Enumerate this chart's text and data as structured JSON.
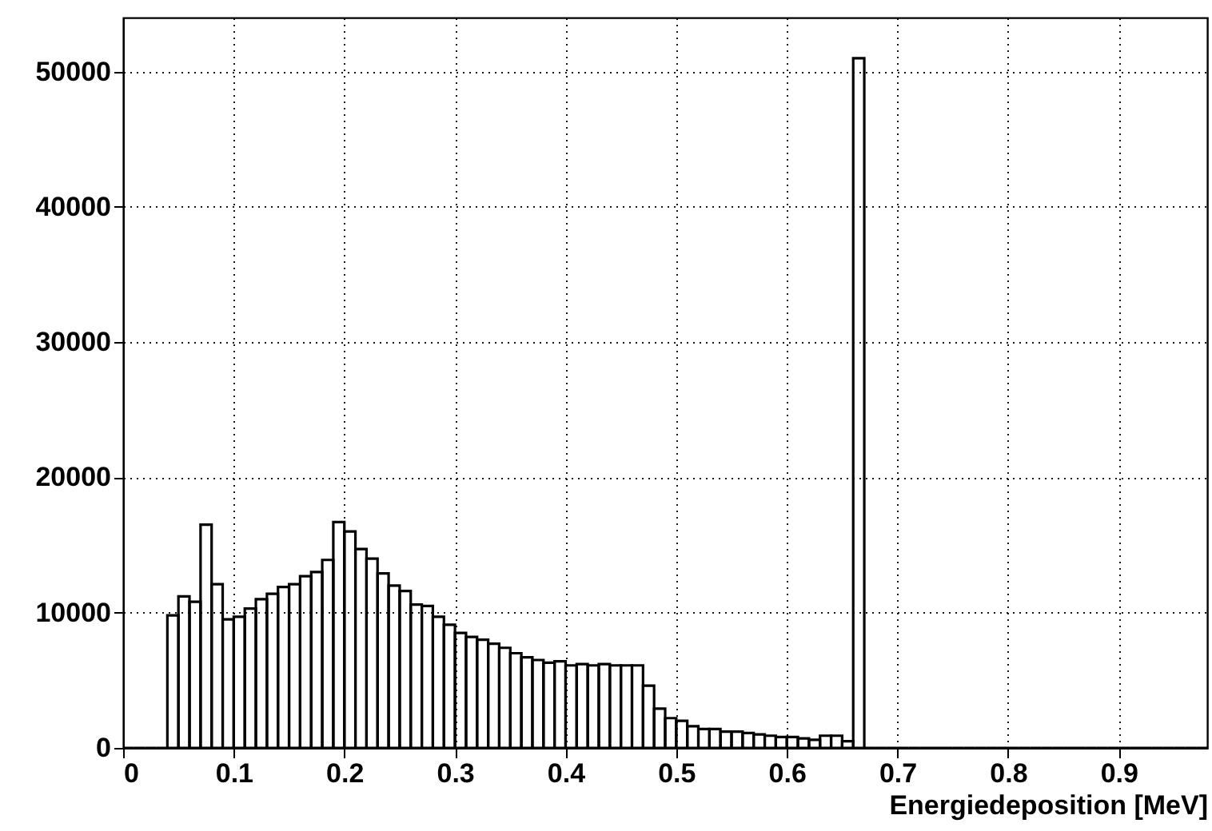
{
  "chart_data": {
    "type": "histogram",
    "xlabel": "Energiedeposition [MeV]",
    "bins": [
      0,
      0.01,
      0.02,
      0.03,
      0.04,
      0.05,
      0.06,
      0.07,
      0.08,
      0.09,
      0.1,
      0.11,
      0.12,
      0.13,
      0.14,
      0.15,
      0.16,
      0.17,
      0.18,
      0.19,
      0.2,
      0.21,
      0.22,
      0.23,
      0.24,
      0.25,
      0.26,
      0.27,
      0.28,
      0.29,
      0.3,
      0.31,
      0.32,
      0.33,
      0.34,
      0.35,
      0.36,
      0.37,
      0.38,
      0.39,
      0.4,
      0.41,
      0.42,
      0.43,
      0.44,
      0.45,
      0.46,
      0.47,
      0.48,
      0.49,
      0.5,
      0.51,
      0.52,
      0.53,
      0.54,
      0.55,
      0.56,
      0.57,
      0.58,
      0.59,
      0.6,
      0.61,
      0.62,
      0.63,
      0.64,
      0.65,
      0.66,
      0.67,
      0.68,
      0.69,
      0.7,
      0.71,
      0.72,
      0.73,
      0.74,
      0.75,
      0.76,
      0.77,
      0.78,
      0.79,
      0.8,
      0.81,
      0.82,
      0.83,
      0.84,
      0.85,
      0.86,
      0.87,
      0.88,
      0.89,
      0.9,
      0.91,
      0.92,
      0.93,
      0.94,
      0.95,
      0.96,
      0.97,
      0.98
    ],
    "values": [
      0,
      0,
      0,
      0,
      9800,
      11200,
      10800,
      16500,
      12100,
      9500,
      9700,
      10300,
      11000,
      11400,
      11900,
      12100,
      12700,
      13000,
      13900,
      16700,
      16000,
      14700,
      14000,
      12900,
      12000,
      11600,
      10600,
      10500,
      9700,
      9100,
      8500,
      8200,
      8000,
      7700,
      7400,
      7000,
      6700,
      6500,
      6300,
      6400,
      6100,
      6200,
      6100,
      6200,
      6100,
      6100,
      6100,
      4600,
      2900,
      2200,
      2000,
      1600,
      1400,
      1400,
      1200,
      1200,
      1100,
      1000,
      900,
      800,
      800,
      700,
      600,
      900,
      900,
      500,
      51000,
      0,
      0,
      0,
      0,
      0,
      0,
      0,
      0,
      0,
      0,
      0,
      0,
      0,
      0,
      0,
      0,
      0,
      0,
      0,
      0,
      0,
      0,
      0,
      0,
      0,
      0,
      0,
      0,
      0,
      0,
      0
    ],
    "color": "#000000",
    "xlim": [
      0,
      0.98
    ],
    "ylim": [
      0,
      54000
    ],
    "xticks": [
      0,
      0.1,
      0.2,
      0.3,
      0.4,
      0.5,
      0.6,
      0.7,
      0.8,
      0.9
    ],
    "yticks": [
      0,
      10000,
      20000,
      30000,
      40000,
      50000
    ],
    "grid": true
  }
}
